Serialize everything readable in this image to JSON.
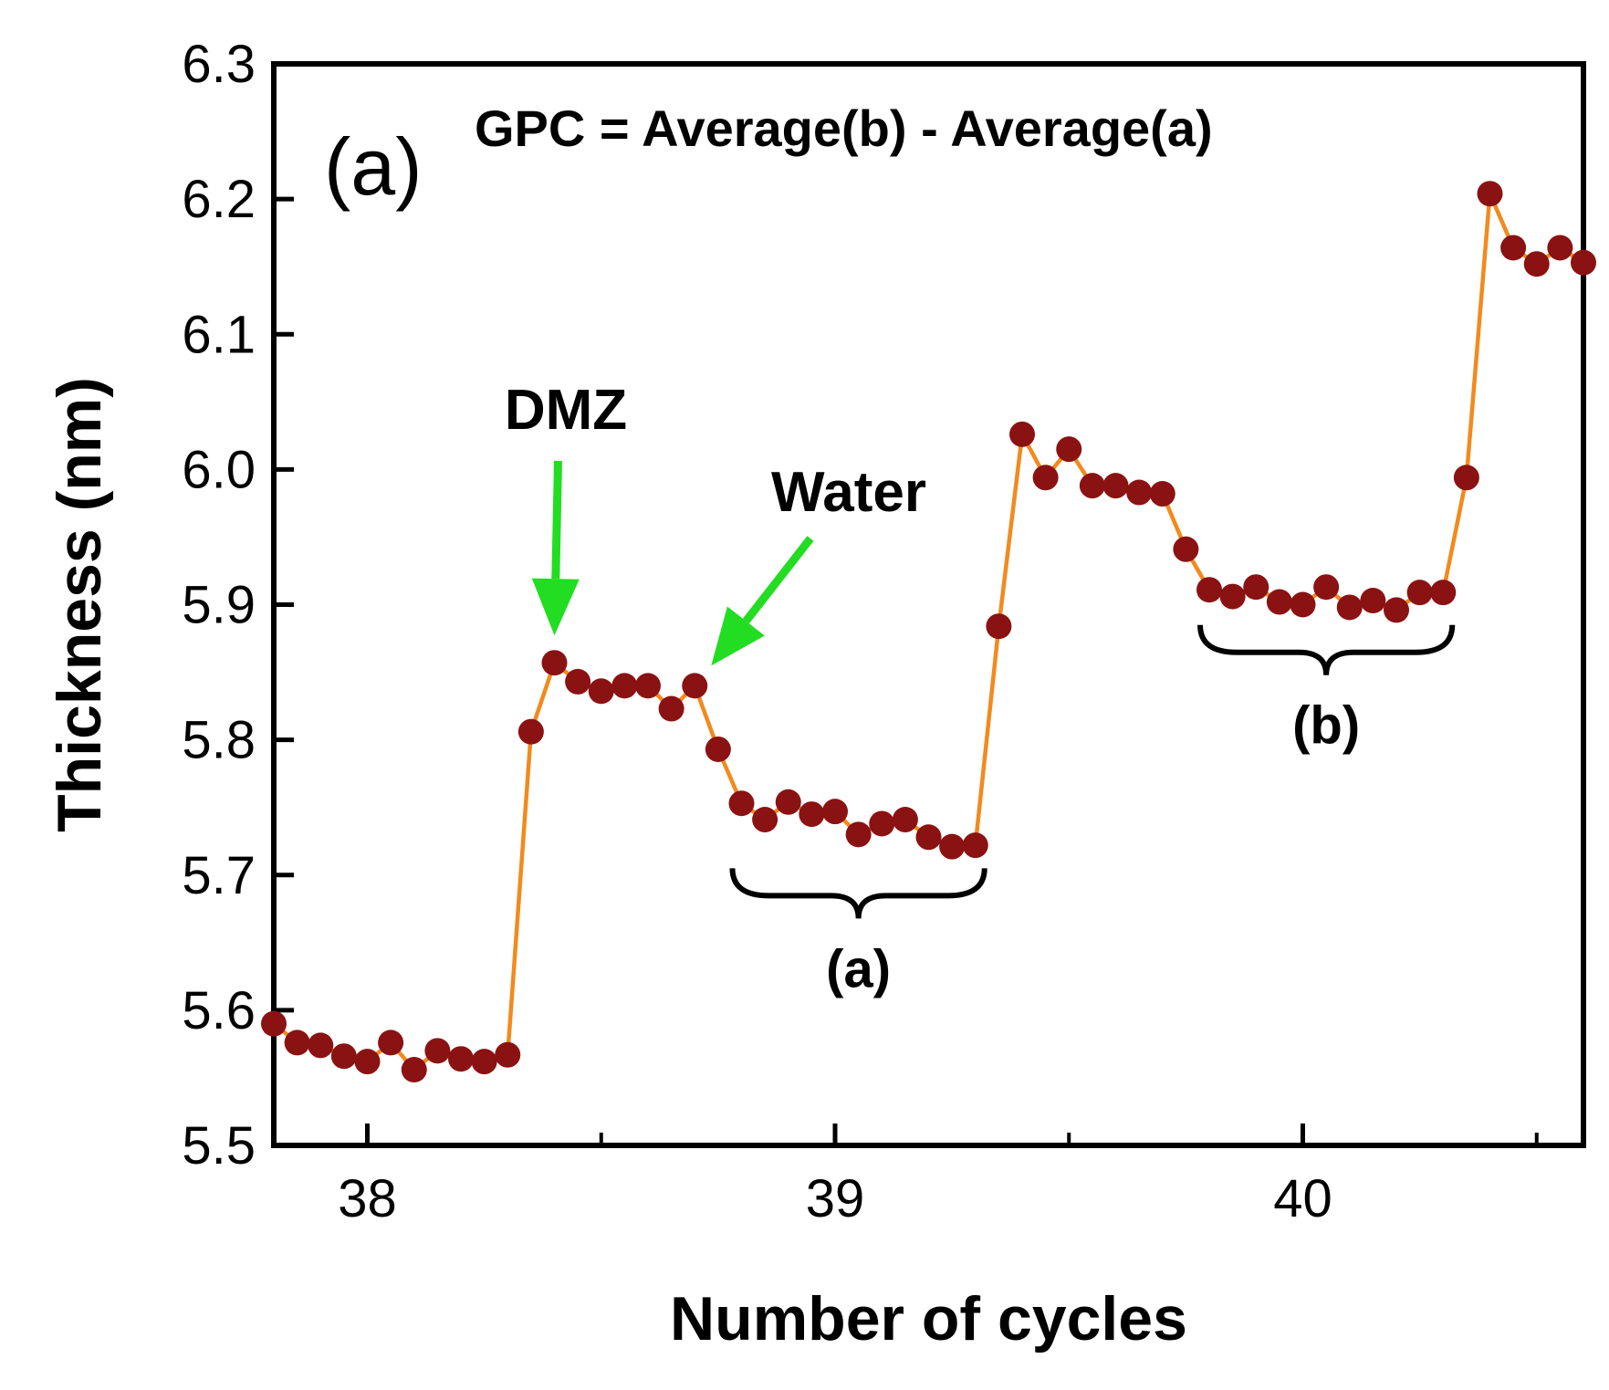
{
  "chart_data": {
    "type": "line",
    "title": "",
    "panel_label": "(a)",
    "formula": "GPC = Average(b) - Average(a)",
    "xlabel": "Number of cycles",
    "ylabel": "Thickness (nm)",
    "xlim": [
      37.8,
      40.6
    ],
    "ylim": [
      5.5,
      6.3
    ],
    "x_ticks": [
      38,
      39,
      40
    ],
    "x_tick_labels": [
      "38",
      "39",
      "40"
    ],
    "x_minor_ticks": [
      38.5,
      39.5,
      40.5
    ],
    "y_ticks": [
      5.5,
      5.6,
      5.7,
      5.8,
      5.9,
      6.0,
      6.1,
      6.2,
      6.3
    ],
    "y_tick_labels": [
      "5.5",
      "5.6",
      "5.7",
      "5.8",
      "5.9",
      "6.0",
      "6.1",
      "6.2",
      "6.3"
    ],
    "series": [
      {
        "name": "thickness",
        "line_color": "#f28a1e",
        "marker_color": "#8b1212",
        "x": [
          37.8,
          37.85,
          37.9,
          37.95,
          38.0,
          38.05,
          38.1,
          38.15,
          38.2,
          38.25,
          38.3,
          38.35,
          38.4,
          38.45,
          38.5,
          38.55,
          38.6,
          38.65,
          38.7,
          38.75,
          38.8,
          38.85,
          38.9,
          38.95,
          39.0,
          39.05,
          39.1,
          39.15,
          39.2,
          39.25,
          39.3,
          39.35,
          39.4,
          39.45,
          39.5,
          39.55,
          39.6,
          39.65,
          39.7,
          39.75,
          39.8,
          39.85,
          39.9,
          39.95,
          40.0,
          40.05,
          40.1,
          40.15,
          40.2,
          40.25,
          40.3,
          40.35,
          40.4,
          40.45,
          40.5,
          40.55,
          40.6
        ],
        "y": [
          5.59,
          5.576,
          5.574,
          5.566,
          5.562,
          5.576,
          5.556,
          5.57,
          5.564,
          5.562,
          5.567,
          5.806,
          5.857,
          5.843,
          5.836,
          5.84,
          5.84,
          5.823,
          5.84,
          5.793,
          5.753,
          5.741,
          5.754,
          5.745,
          5.747,
          5.73,
          5.738,
          5.741,
          5.728,
          5.721,
          5.722,
          5.884,
          6.026,
          5.994,
          6.015,
          5.988,
          5.988,
          5.983,
          5.982,
          5.941,
          5.911,
          5.906,
          5.913,
          5.902,
          5.9,
          5.913,
          5.898,
          5.903,
          5.896,
          5.909,
          5.909,
          5.994,
          6.204,
          6.164,
          6.152,
          6.164,
          6.153
        ]
      }
    ],
    "annotations": [
      {
        "text": "DMZ",
        "target_x": 38.4,
        "target_y": 5.857
      },
      {
        "text": "Water",
        "target_x": 38.7,
        "target_y": 5.84
      }
    ],
    "braces": [
      {
        "label": "(a)",
        "x_start": 38.8,
        "x_end": 39.3,
        "y": 5.705
      },
      {
        "label": "(b)",
        "x_start": 39.8,
        "x_end": 40.3,
        "y": 5.885
      }
    ],
    "arrow_color": "#22dd22"
  }
}
